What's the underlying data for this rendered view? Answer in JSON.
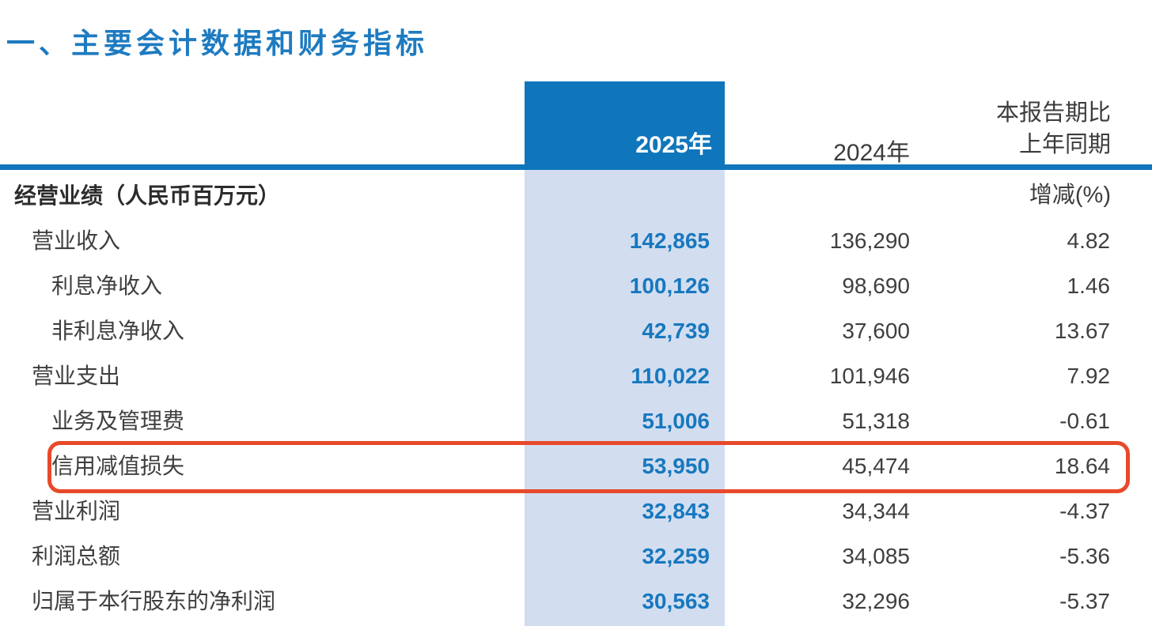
{
  "page": {
    "title": "一、主要会计数据和财务指标"
  },
  "colors": {
    "title_blue": "#1e7bc0",
    "header_block_blue": "#0f76bc",
    "column_band_light_blue": "#d2def0",
    "value_blue": "#1878be",
    "text_dark": "#3f3f3f",
    "highlight_red": "#e8492b"
  },
  "table": {
    "col_headers": {
      "col_2025": "2025年",
      "col_2024": "2024年",
      "col_change_line1": "本报告期比",
      "col_change_line2": "上年同期",
      "col_change_line3": "增减(%)"
    },
    "rows": [
      {
        "label": "经营业绩（人民币百万元）",
        "indent": 0,
        "bold": true,
        "v2025": "",
        "v2024": "",
        "change": "",
        "highlighted": false
      },
      {
        "label": "营业收入",
        "indent": 1,
        "bold": false,
        "v2025": "142,865",
        "v2024": "136,290",
        "change": "4.82",
        "highlighted": false
      },
      {
        "label": "利息净收入",
        "indent": 2,
        "bold": false,
        "v2025": "100,126",
        "v2024": "98,690",
        "change": "1.46",
        "highlighted": false
      },
      {
        "label": "非利息净收入",
        "indent": 2,
        "bold": false,
        "v2025": "42,739",
        "v2024": "37,600",
        "change": "13.67",
        "highlighted": false
      },
      {
        "label": "营业支出",
        "indent": 1,
        "bold": false,
        "v2025": "110,022",
        "v2024": "101,946",
        "change": "7.92",
        "highlighted": false
      },
      {
        "label": "业务及管理费",
        "indent": 2,
        "bold": false,
        "v2025": "51,006",
        "v2024": "51,318",
        "change": "-0.61",
        "highlighted": false
      },
      {
        "label": "信用减值损失",
        "indent": 2,
        "bold": false,
        "v2025": "53,950",
        "v2024": "45,474",
        "change": "18.64",
        "highlighted": true
      },
      {
        "label": "营业利润",
        "indent": 1,
        "bold": false,
        "v2025": "32,843",
        "v2024": "34,344",
        "change": "-4.37",
        "highlighted": false
      },
      {
        "label": "利润总额",
        "indent": 1,
        "bold": false,
        "v2025": "32,259",
        "v2024": "34,085",
        "change": "-5.36",
        "highlighted": false
      },
      {
        "label": "归属于本行股东的净利润",
        "indent": 1,
        "bold": false,
        "v2025": "30,563",
        "v2024": "32,296",
        "change": "-5.37",
        "highlighted": false
      }
    ]
  }
}
